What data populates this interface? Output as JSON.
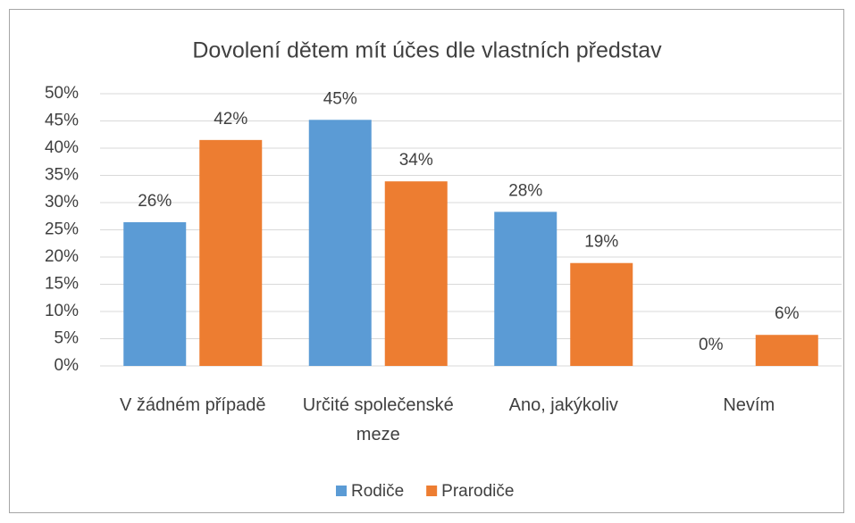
{
  "chart_data": {
    "type": "bar",
    "title": "Dovolení dětem mít účes dle vlastních představ",
    "categories": [
      "V žádném případě",
      "Určité společenské meze",
      "Ano, jakýkoliv",
      "Nevím"
    ],
    "series": [
      {
        "name": "Rodiče",
        "color": "#5b9bd5",
        "values": [
          26.4,
          45.2,
          28.3,
          0
        ],
        "value_labels": [
          "26%",
          "45%",
          "28%",
          "0%"
        ]
      },
      {
        "name": "Prarodiče",
        "color": "#ed7d31",
        "values": [
          41.5,
          33.9,
          18.9,
          5.7
        ],
        "value_labels": [
          "42%",
          "34%",
          "19%",
          "6%"
        ]
      }
    ],
    "ylim": [
      0,
      50
    ],
    "yticks": [
      {
        "value": 0,
        "label": "0%"
      },
      {
        "value": 5,
        "label": "5%"
      },
      {
        "value": 10,
        "label": "10%"
      },
      {
        "value": 15,
        "label": "15%"
      },
      {
        "value": 20,
        "label": "20%"
      },
      {
        "value": 25,
        "label": "25%"
      },
      {
        "value": 30,
        "label": "30%"
      },
      {
        "value": 35,
        "label": "35%"
      },
      {
        "value": 40,
        "label": "40%"
      },
      {
        "value": 45,
        "label": "45%"
      },
      {
        "value": 50,
        "label": "50%"
      }
    ],
    "grid": true,
    "legend": "bottom"
  }
}
